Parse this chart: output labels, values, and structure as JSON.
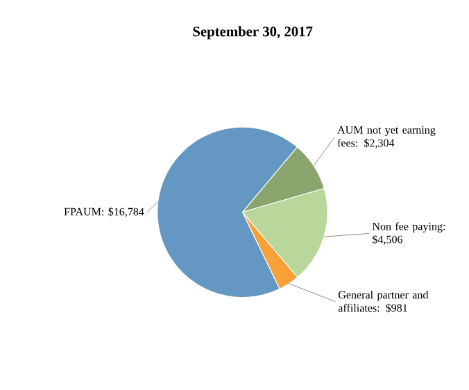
{
  "chart_data": {
    "type": "pie",
    "title": "September 30, 2017",
    "categories": [
      "AUM not yet earning fees: $2,304",
      "Non fee paying: $4,506",
      "General partner and affiliates: $981",
      "FPAUM: $16,784"
    ],
    "values": [
      2304,
      4506,
      981,
      16784
    ],
    "colors": [
      "#8aa46e",
      "#b9d79a",
      "#f7a136",
      "#6497c1"
    ]
  }
}
